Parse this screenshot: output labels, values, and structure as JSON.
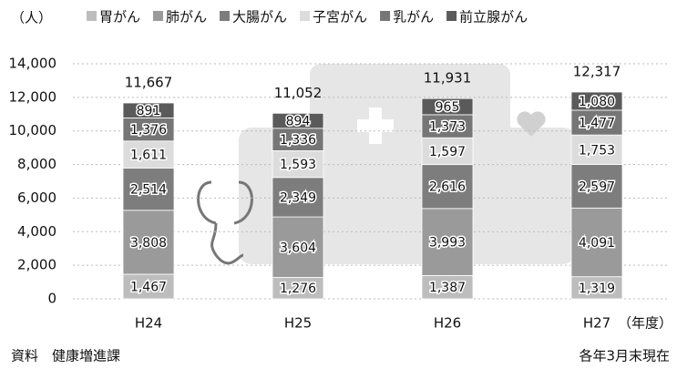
{
  "chart_data": {
    "type": "stacked_bar",
    "y_unit_label": "（人）",
    "x_unit_label": "（年度）",
    "source": "資料　健康増進課",
    "note": "各年3月末現在",
    "categories": [
      "H24",
      "H25",
      "H26",
      "H27"
    ],
    "series": [
      {
        "name": "胃がん",
        "color": "#bdbdbd",
        "values": [
          1467,
          1276,
          1387,
          1319
        ],
        "value_labels": [
          "1,467",
          "1,276",
          "1,387",
          "1,319"
        ]
      },
      {
        "name": "肺がん",
        "color": "#9a9a9a",
        "values": [
          3808,
          3604,
          3993,
          4091
        ],
        "value_labels": [
          "3,808",
          "3,604",
          "3,993",
          "4,091"
        ]
      },
      {
        "name": "大腸がん",
        "color": "#7d7d7d",
        "values": [
          2514,
          2349,
          2616,
          2597
        ],
        "value_labels": [
          "2,514",
          "2,349",
          "2,616",
          "2,597"
        ]
      },
      {
        "name": "子宮がん",
        "color": "#dcdcdc",
        "values": [
          1611,
          1593,
          1597,
          1753
        ],
        "value_labels": [
          "1,611",
          "1,593",
          "1,597",
          "1,753"
        ]
      },
      {
        "name": "乳がん",
        "color": "#767676",
        "values": [
          1376,
          1336,
          1373,
          1477
        ],
        "value_labels": [
          "1,376",
          "1,336",
          "1,373",
          "1,477"
        ]
      },
      {
        "name": "前立腺がん",
        "color": "#5a5a5a",
        "values": [
          891,
          894,
          965,
          1080
        ],
        "value_labels": [
          "891",
          "894",
          "965",
          "1,080"
        ]
      }
    ],
    "totals": [
      11667,
      11052,
      11931,
      12317
    ],
    "total_labels": [
      "11,667",
      "11,052",
      "11,931",
      "12,317"
    ],
    "ylim": [
      0,
      14000
    ],
    "yticks": [
      0,
      {
        "value": 2000,
        "label": "2,000"
      },
      {
        "value": 4000,
        "label": "4,000"
      },
      {
        "value": 6000,
        "label": "6,000"
      },
      {
        "value": 8000,
        "label": "8,000"
      },
      {
        "value": 10000,
        "label": "10,000"
      },
      {
        "value": 12000,
        "label": "12,000"
      },
      {
        "value": 14000,
        "label": "14,000"
      }
    ],
    "grid": true
  }
}
